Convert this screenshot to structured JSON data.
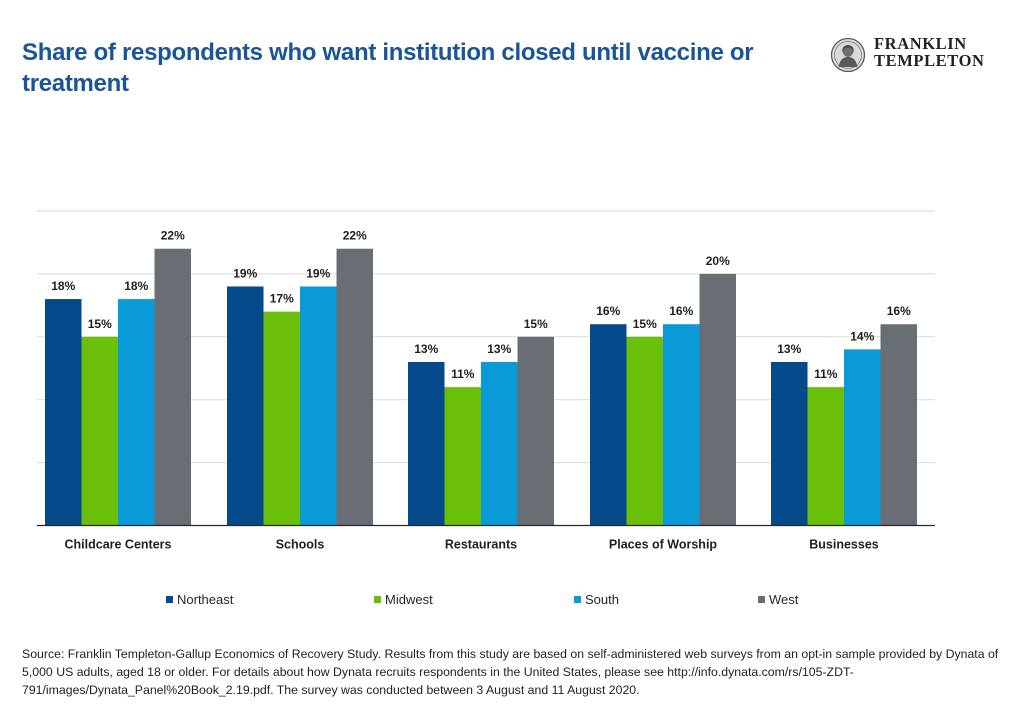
{
  "page": {
    "title": "Share of respondents who want institution closed until vaccine or treatment",
    "logo_line1": "FRANKLIN",
    "logo_line2": "TEMPLETON",
    "source": "Source: Franklin Templeton-Gallup Economics of Recovery Study. Results from this study are based on self-administered web surveys from an opt-in sample provided by Dynata of 5,000 US adults, aged 18 or older. For details about how Dynata recruits respondents in the United States, please see http://info.dynata.com/rs/105-ZDT-791/images/Dynata_Panel%20Book_2.19.pdf. The survey was conducted between 3 August and 11 August 2020."
  },
  "chart_data": {
    "type": "bar",
    "title": "Share of respondents who want institution closed until vaccine or treatment",
    "categories": [
      "Childcare Centers",
      "Schools",
      "Restaurants",
      "Places of Worship",
      "Businesses"
    ],
    "series": [
      {
        "name": "Northeast",
        "color": "#044a8a",
        "values": [
          18,
          19,
          13,
          16,
          13
        ]
      },
      {
        "name": "Midwest",
        "color": "#6abf0b",
        "values": [
          15,
          17,
          11,
          15,
          11
        ]
      },
      {
        "name": "South",
        "color": "#0a9ad8",
        "values": [
          18,
          19,
          13,
          16,
          14
        ]
      },
      {
        "name": "West",
        "color": "#686e74",
        "values": [
          22,
          22,
          15,
          20,
          16
        ]
      }
    ],
    "value_suffix": "%",
    "ylim": [
      0,
      25
    ],
    "gridlines": true,
    "y_tick_labels": false,
    "legend_position": "bottom"
  }
}
